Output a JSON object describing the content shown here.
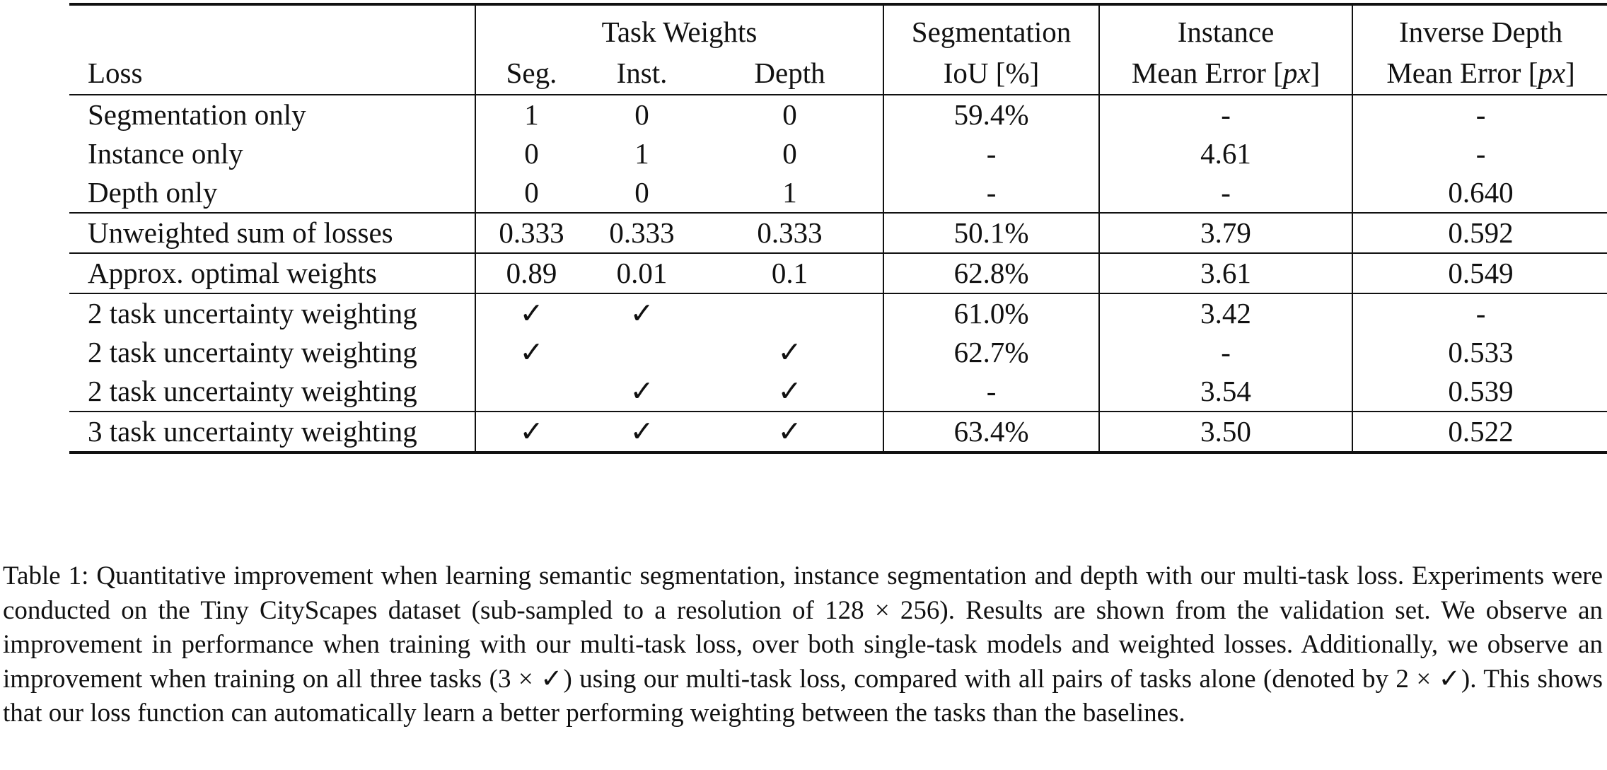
{
  "table": {
    "header": {
      "loss": "Loss",
      "task_weights": "Task Weights",
      "seg": "Seg.",
      "inst": "Inst.",
      "depth": "Depth",
      "segmentation_line1": "Segmentation",
      "segmentation_line2": "IoU [%]",
      "instance_line1": "Instance",
      "instance_line2_prefix": "Mean Error [",
      "instance_unit": "px",
      "instance_line2_suffix": "]",
      "inverse_depth_line1": "Inverse Depth",
      "inverse_depth_line2_prefix": "Mean Error [",
      "inverse_depth_unit": "px",
      "inverse_depth_line2_suffix": "]"
    },
    "groups": [
      {
        "rows": [
          {
            "loss": "Segmentation only",
            "seg": "1",
            "inst": "0",
            "depth": "0",
            "iou": "59.4%",
            "instance_err": "-",
            "depth_err": "-"
          },
          {
            "loss": "Instance only",
            "seg": "0",
            "inst": "1",
            "depth": "0",
            "iou": "-",
            "instance_err": "4.61",
            "depth_err": "-"
          },
          {
            "loss": "Depth only",
            "seg": "0",
            "inst": "0",
            "depth": "1",
            "iou": "-",
            "instance_err": "-",
            "depth_err": "0.640"
          }
        ]
      },
      {
        "rows": [
          {
            "loss": "Unweighted sum of losses",
            "seg": "0.333",
            "inst": "0.333",
            "depth": "0.333",
            "iou": "50.1%",
            "instance_err": "3.79",
            "depth_err": "0.592"
          }
        ]
      },
      {
        "rows": [
          {
            "loss": "Approx. optimal weights",
            "seg": "0.89",
            "inst": "0.01",
            "depth": "0.1",
            "iou": "62.8%",
            "instance_err": "3.61",
            "depth_err": "0.549"
          }
        ]
      },
      {
        "rows": [
          {
            "loss": "2 task uncertainty weighting",
            "seg": "✓",
            "inst": "✓",
            "depth": "",
            "iou": "61.0%",
            "instance_err": "3.42",
            "depth_err": "-"
          },
          {
            "loss": "2 task uncertainty weighting",
            "seg": "✓",
            "inst": "",
            "depth": "✓",
            "iou": "62.7%",
            "instance_err": "-",
            "depth_err": "0.533"
          },
          {
            "loss": "2 task uncertainty weighting",
            "seg": "",
            "inst": "✓",
            "depth": "✓",
            "iou": "-",
            "instance_err": "3.54",
            "depth_err": "0.539"
          }
        ]
      },
      {
        "rows": [
          {
            "loss": "3 task uncertainty weighting",
            "seg": "✓",
            "inst": "✓",
            "depth": "✓",
            "iou": "63.4%",
            "instance_err": "3.50",
            "depth_err": "0.522"
          }
        ]
      }
    ]
  },
  "caption": {
    "s1": "Table 1: Quantitative improvement when learning semantic segmentation, instance segmentation and depth with our multi-task loss. Experiments were conducted on the Tiny CityScapes dataset (sub-sampled to a resolution of ",
    "res_a": "128",
    "times1": "×",
    "res_b": "256",
    "s2": "). Results are shown from the validation set. We observe an improvement in performance when training with our multi-task loss, over both single-task models and weighted losses. Additionally, we observe an improvement when training on all three tasks (",
    "three": "3",
    "times2": "×",
    "check1": "✓",
    "s3": ") using our multi-task loss, compared with all pairs of tasks alone (denoted by ",
    "two": "2",
    "times3": "×",
    "check2": "✓",
    "s4": "). This shows that our loss function can automatically learn a better performing weighting between the tasks than the baselines."
  }
}
